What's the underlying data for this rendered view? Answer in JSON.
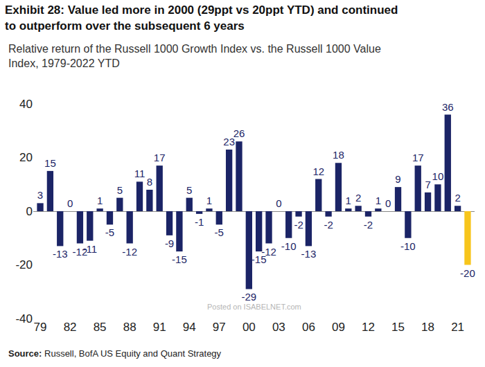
{
  "chart_data": {
    "type": "bar",
    "title": "Exhibit 28: Value led more in 2000 (29ppt vs 20ppt YTD) and continued to outperform over the subsequent 6 years",
    "subtitle": "Relative return of the Russell 1000 Growth Index vs. the Russell 1000 Value Index, 1979-2022 YTD",
    "source": "Source: Russell, BofA US Equity and Quant Strategy",
    "watermark": "Posted on ISABELNET.com",
    "categories": [
      "79",
      null,
      null,
      "82",
      null,
      null,
      "85",
      null,
      null,
      "88",
      null,
      null,
      "91",
      null,
      null,
      "94",
      null,
      null,
      "97",
      null,
      null,
      "00",
      null,
      null,
      "03",
      null,
      null,
      "06",
      null,
      null,
      "09",
      null,
      null,
      "12",
      null,
      null,
      "15",
      null,
      null,
      "18",
      null,
      null,
      "21",
      null
    ],
    "values": [
      3,
      15,
      -13,
      0,
      -12,
      -11,
      1,
      -5,
      5,
      -12,
      11,
      8,
      17,
      -9,
      -15,
      5,
      -1,
      1,
      -5,
      23,
      26,
      -29,
      -15,
      -12,
      0,
      -10,
      -2,
      -13,
      12,
      -2,
      18,
      1,
      2,
      -2,
      1,
      0,
      9,
      -10,
      17,
      7,
      10,
      36,
      2,
      -20
    ],
    "colors": [
      "#1b2466",
      "#1b2466",
      "#1b2466",
      "#1b2466",
      "#1b2466",
      "#1b2466",
      "#1b2466",
      "#1b2466",
      "#1b2466",
      "#1b2466",
      "#1b2466",
      "#1b2466",
      "#1b2466",
      "#1b2466",
      "#1b2466",
      "#1b2466",
      "#1b2466",
      "#1b2466",
      "#1b2466",
      "#1b2466",
      "#1b2466",
      "#1b2466",
      "#1b2466",
      "#1b2466",
      "#1b2466",
      "#1b2466",
      "#1b2466",
      "#1b2466",
      "#1b2466",
      "#1b2466",
      "#1b2466",
      "#1b2466",
      "#1b2466",
      "#1b2466",
      "#1b2466",
      "#1b2466",
      "#1b2466",
      "#1b2466",
      "#1b2466",
      "#1b2466",
      "#1b2466",
      "#1b2466",
      "#1b2466",
      "#f7c51c"
    ],
    "ylim": [
      -40,
      40
    ],
    "yticks": [
      -40,
      -20,
      0,
      20,
      40
    ],
    "grid": false,
    "data_labels": true
  }
}
